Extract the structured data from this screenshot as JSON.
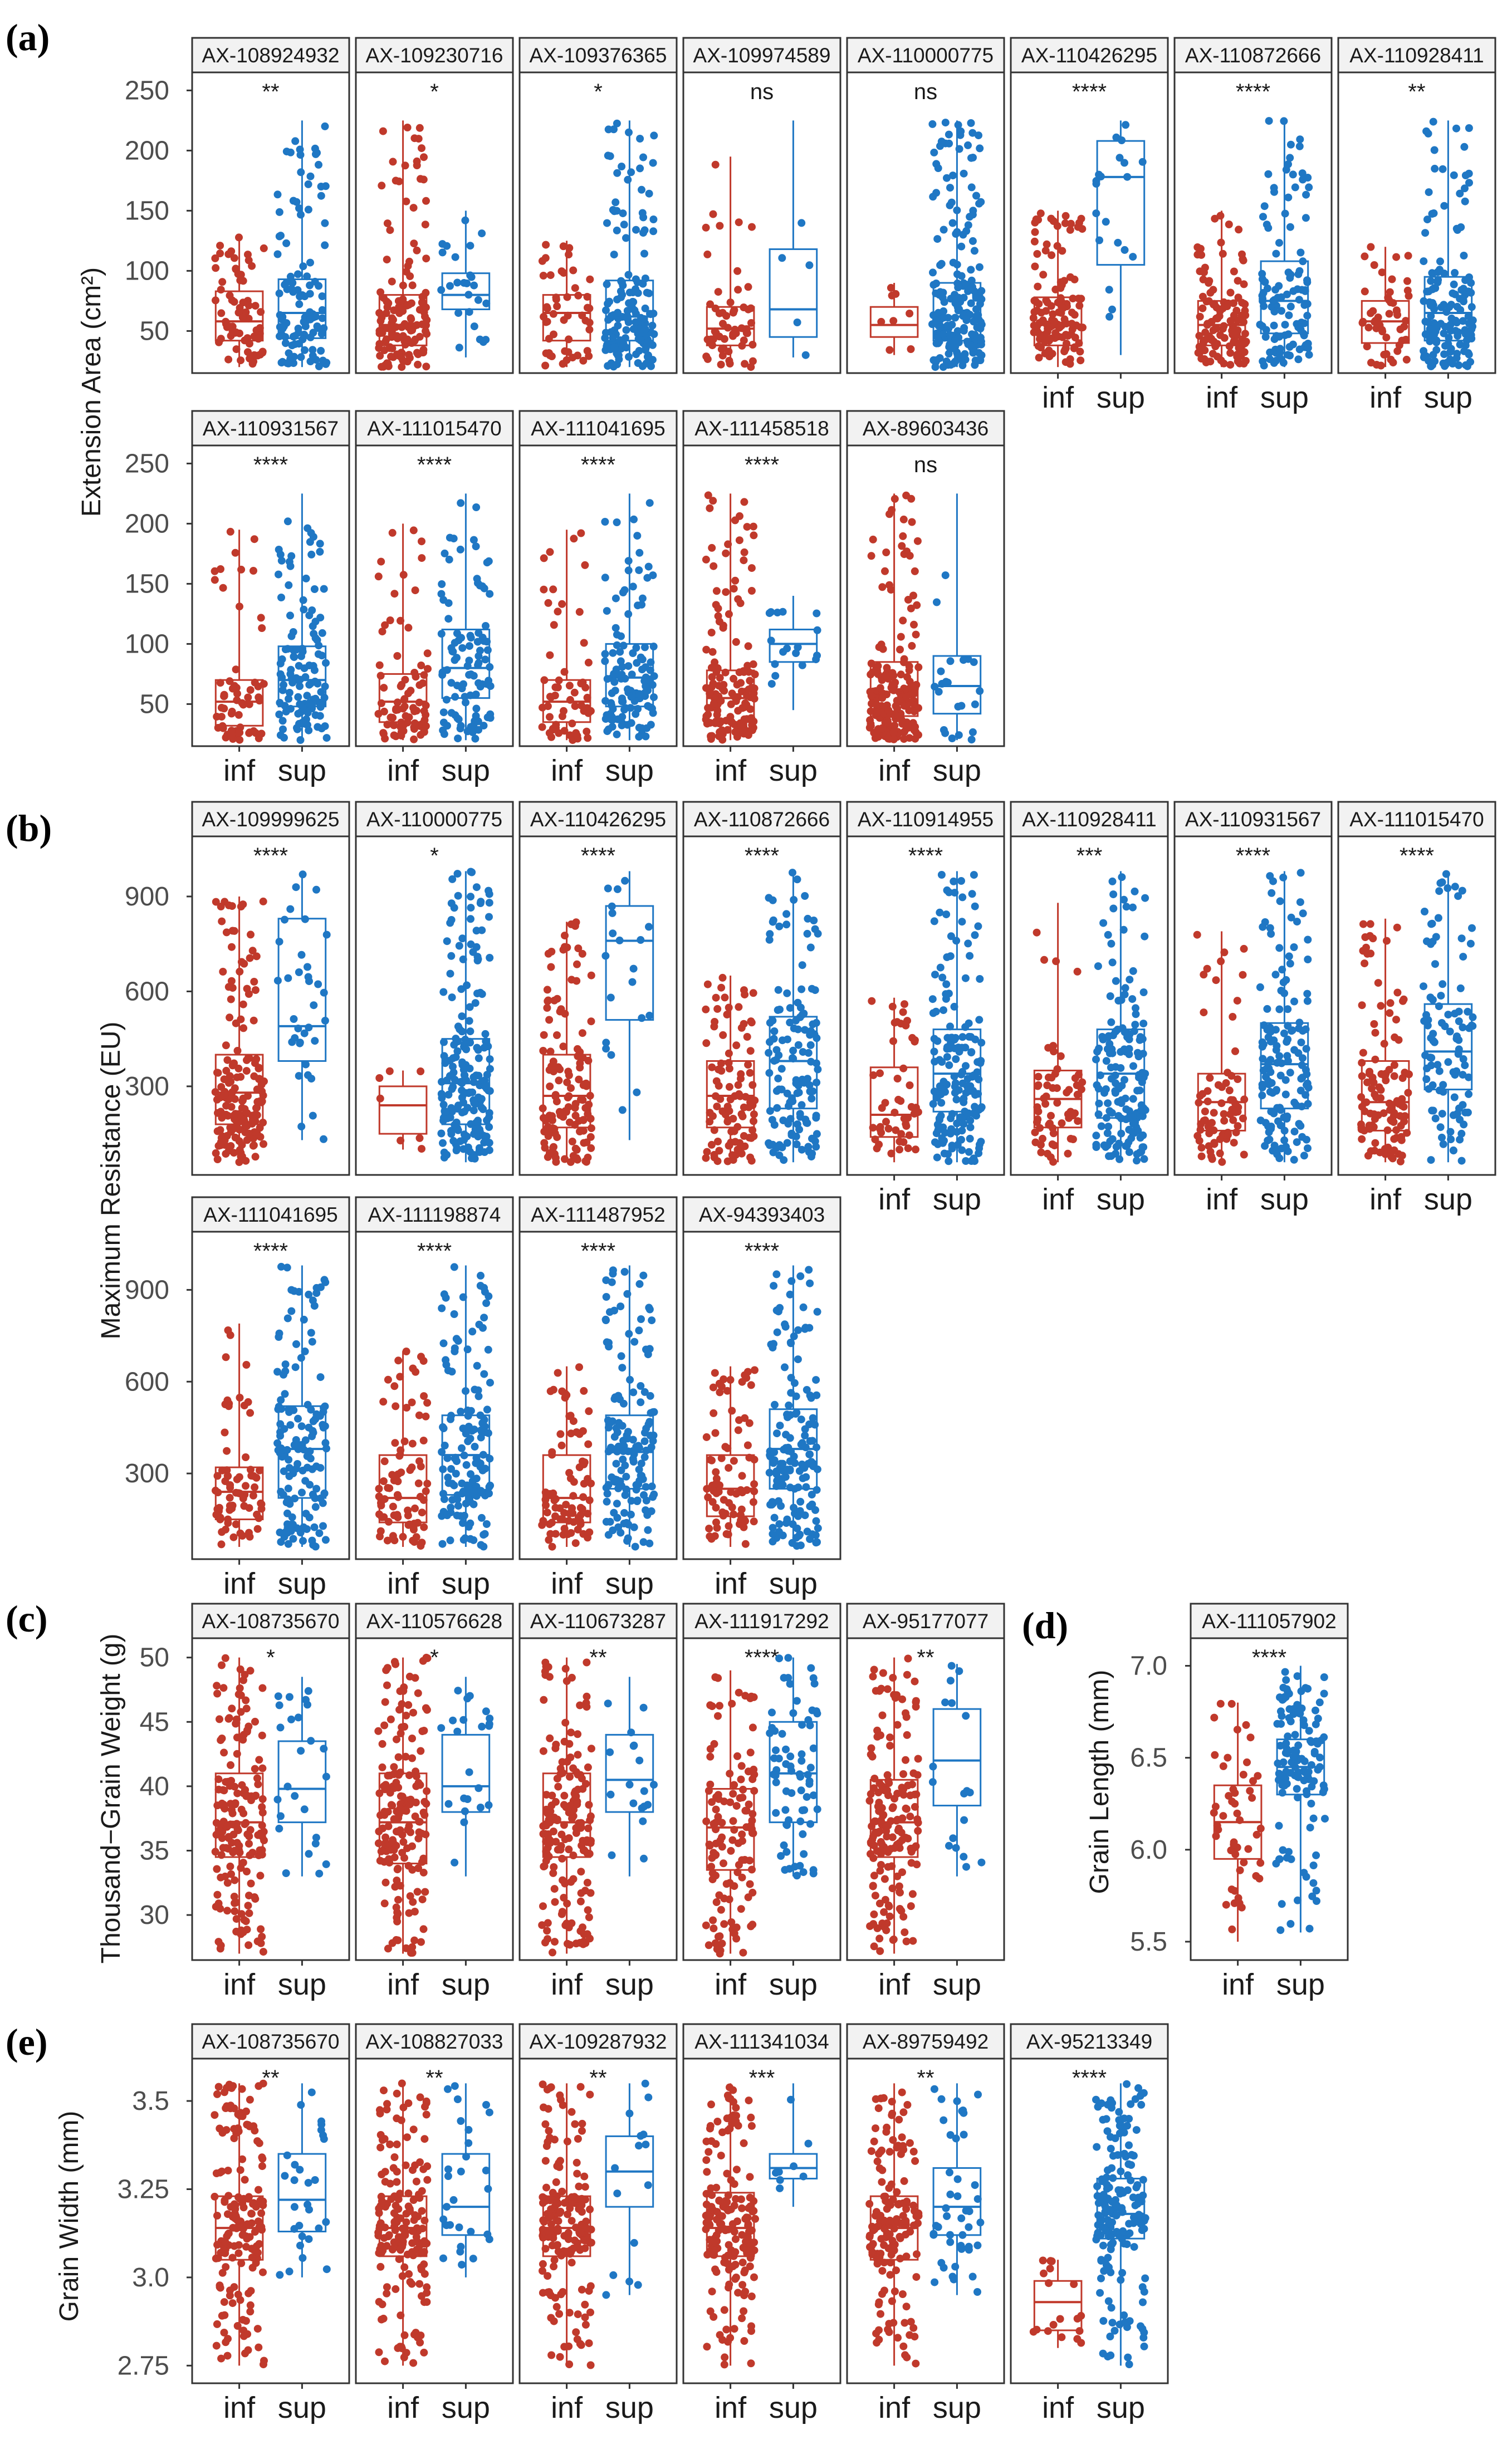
{
  "colors": {
    "inf": "#C0392B",
    "sup": "#1F77C4",
    "panel_border": "#333333",
    "strip_fill": "#f2f2f2"
  },
  "chart_data": [
    {
      "panel": "(a)",
      "type": "boxplot-jitter",
      "ylabel": "Extension Area (cm²)",
      "yticks": [
        50,
        100,
        150,
        200,
        250
      ],
      "ylim": [
        15,
        265
      ],
      "categories": [
        "inf",
        "sup"
      ],
      "cols": 8,
      "facets": [
        {
          "marker": "AX-108924932",
          "sig": "**",
          "inf": {
            "q1": 42,
            "med": 58,
            "q3": 83,
            "lo": 20,
            "hi": 128,
            "n": 70
          },
          "sup": {
            "q1": 44,
            "med": 65,
            "q3": 93,
            "lo": 20,
            "hi": 225,
            "n": 110
          }
        },
        {
          "marker": "AX-109230716",
          "sig": "*",
          "inf": {
            "q1": 38,
            "med": 55,
            "q3": 80,
            "lo": 20,
            "hi": 225,
            "n": 140
          },
          "sup": {
            "q1": 68,
            "med": 80,
            "q3": 98,
            "lo": 28,
            "hi": 150,
            "n": 25
          }
        },
        {
          "marker": "AX-109376365",
          "sig": "*",
          "inf": {
            "q1": 42,
            "med": 65,
            "q3": 80,
            "lo": 20,
            "hi": 125,
            "n": 50
          },
          "sup": {
            "q1": 42,
            "med": 62,
            "q3": 92,
            "lo": 20,
            "hi": 225,
            "n": 150
          }
        },
        {
          "marker": "AX-109974589",
          "sig": "ns",
          "inf": {
            "q1": 38,
            "med": 52,
            "q3": 70,
            "lo": 20,
            "hi": 195,
            "n": 60
          },
          "sup": {
            "q1": 45,
            "med": 68,
            "q3": 118,
            "lo": 28,
            "hi": 225,
            "n": 5
          }
        },
        {
          "marker": "AX-110000775",
          "sig": "ns",
          "inf": {
            "q1": 45,
            "med": 55,
            "q3": 70,
            "lo": 30,
            "hi": 90,
            "n": 8
          },
          "sup": {
            "q1": 42,
            "med": 62,
            "q3": 90,
            "lo": 20,
            "hi": 225,
            "n": 200
          }
        },
        {
          "marker": "AX-110426295",
          "sig": "****",
          "inf": {
            "q1": 38,
            "med": 55,
            "q3": 78,
            "lo": 20,
            "hi": 150,
            "n": 120
          },
          "sup": {
            "q1": 105,
            "med": 178,
            "q3": 208,
            "lo": 30,
            "hi": 225,
            "n": 20
          }
        },
        {
          "marker": "AX-110872666",
          "sig": "****",
          "inf": {
            "q1": 38,
            "med": 55,
            "q3": 75,
            "lo": 20,
            "hi": 150,
            "n": 120
          },
          "sup": {
            "q1": 48,
            "med": 75,
            "q3": 108,
            "lo": 20,
            "hi": 225,
            "n": 110
          }
        },
        {
          "marker": "AX-110928411",
          "sig": "**",
          "inf": {
            "q1": 40,
            "med": 58,
            "q3": 75,
            "lo": 20,
            "hi": 120,
            "n": 50
          },
          "sup": {
            "q1": 42,
            "med": 65,
            "q3": 95,
            "lo": 20,
            "hi": 225,
            "n": 140
          }
        },
        {
          "marker": "AX-110931567",
          "sig": "****",
          "inf": {
            "q1": 32,
            "med": 52,
            "q3": 70,
            "lo": 20,
            "hi": 195,
            "n": 60
          },
          "sup": {
            "q1": 48,
            "med": 70,
            "q3": 98,
            "lo": 20,
            "hi": 225,
            "n": 120
          }
        },
        {
          "marker": "AX-111015470",
          "sig": "****",
          "inf": {
            "q1": 35,
            "med": 52,
            "q3": 75,
            "lo": 20,
            "hi": 200,
            "n": 80
          },
          "sup": {
            "q1": 55,
            "med": 80,
            "q3": 112,
            "lo": 20,
            "hi": 225,
            "n": 100
          }
        },
        {
          "marker": "AX-111041695",
          "sig": "****",
          "inf": {
            "q1": 35,
            "med": 52,
            "q3": 70,
            "lo": 20,
            "hi": 195,
            "n": 60
          },
          "sup": {
            "q1": 48,
            "med": 72,
            "q3": 100,
            "lo": 20,
            "hi": 225,
            "n": 120
          }
        },
        {
          "marker": "AX-111458518",
          "sig": "****",
          "inf": {
            "q1": 35,
            "med": 55,
            "q3": 78,
            "lo": 20,
            "hi": 225,
            "n": 150
          },
          "sup": {
            "q1": 85,
            "med": 100,
            "q3": 112,
            "lo": 45,
            "hi": 140,
            "n": 18
          }
        },
        {
          "marker": "AX-89603436",
          "sig": "ns",
          "inf": {
            "q1": 40,
            "med": 60,
            "q3": 85,
            "lo": 20,
            "hi": 225,
            "n": 180
          },
          "sup": {
            "q1": 42,
            "med": 65,
            "q3": 90,
            "lo": 20,
            "hi": 225,
            "n": 22
          }
        }
      ]
    },
    {
      "panel": "(b)",
      "type": "boxplot-jitter",
      "ylabel": "Maximum Resistance (EU)",
      "yticks": [
        300,
        600,
        900
      ],
      "ylim": [
        20,
        1090
      ],
      "categories": [
        "inf",
        "sup"
      ],
      "cols": 8,
      "facets": [
        {
          "marker": "AX-109999625",
          "sig": "****",
          "inf": {
            "q1": 180,
            "med": 280,
            "q3": 400,
            "lo": 60,
            "hi": 900,
            "n": 170
          },
          "sup": {
            "q1": 380,
            "med": 490,
            "q3": 830,
            "lo": 130,
            "hi": 980,
            "n": 35
          }
        },
        {
          "marker": "AX-110000775",
          "sig": "*",
          "inf": {
            "q1": 150,
            "med": 240,
            "q3": 300,
            "lo": 100,
            "hi": 350,
            "n": 7
          },
          "sup": {
            "q1": 180,
            "med": 310,
            "q3": 450,
            "lo": 60,
            "hi": 980,
            "n": 200
          }
        },
        {
          "marker": "AX-110426295",
          "sig": "****",
          "inf": {
            "q1": 170,
            "med": 270,
            "q3": 400,
            "lo": 60,
            "hi": 820,
            "n": 130
          },
          "sup": {
            "q1": 510,
            "med": 760,
            "q3": 870,
            "lo": 130,
            "hi": 980,
            "n": 20
          }
        },
        {
          "marker": "AX-110872666",
          "sig": "****",
          "inf": {
            "q1": 170,
            "med": 270,
            "q3": 380,
            "lo": 60,
            "hi": 650,
            "n": 100
          },
          "sup": {
            "q1": 230,
            "med": 380,
            "q3": 520,
            "lo": 60,
            "hi": 980,
            "n": 130
          }
        },
        {
          "marker": "AX-110914955",
          "sig": "****",
          "inf": {
            "q1": 140,
            "med": 210,
            "q3": 360,
            "lo": 60,
            "hi": 580,
            "n": 50
          },
          "sup": {
            "q1": 220,
            "med": 340,
            "q3": 480,
            "lo": 60,
            "hi": 980,
            "n": 170
          }
        },
        {
          "marker": "AX-110928411",
          "sig": "***",
          "inf": {
            "q1": 170,
            "med": 260,
            "q3": 350,
            "lo": 60,
            "hi": 880,
            "n": 60
          },
          "sup": {
            "q1": 200,
            "med": 340,
            "q3": 480,
            "lo": 60,
            "hi": 980,
            "n": 160
          }
        },
        {
          "marker": "AX-110931567",
          "sig": "****",
          "inf": {
            "q1": 160,
            "med": 250,
            "q3": 340,
            "lo": 60,
            "hi": 790,
            "n": 70
          },
          "sup": {
            "q1": 230,
            "med": 370,
            "q3": 500,
            "lo": 60,
            "hi": 980,
            "n": 140
          }
        },
        {
          "marker": "AX-111015470",
          "sig": "****",
          "inf": {
            "q1": 160,
            "med": 250,
            "q3": 380,
            "lo": 60,
            "hi": 830,
            "n": 110
          },
          "sup": {
            "q1": 290,
            "med": 410,
            "q3": 560,
            "lo": 60,
            "hi": 980,
            "n": 100
          }
        },
        {
          "marker": "AX-111041695",
          "sig": "****",
          "inf": {
            "q1": 150,
            "med": 240,
            "q3": 320,
            "lo": 60,
            "hi": 790,
            "n": 70
          },
          "sup": {
            "q1": 220,
            "med": 380,
            "q3": 520,
            "lo": 60,
            "hi": 980,
            "n": 140
          }
        },
        {
          "marker": "AX-111198874",
          "sig": "****",
          "inf": {
            "q1": 140,
            "med": 220,
            "q3": 360,
            "lo": 60,
            "hi": 700,
            "n": 80
          },
          "sup": {
            "q1": 230,
            "med": 360,
            "q3": 490,
            "lo": 60,
            "hi": 980,
            "n": 140
          }
        },
        {
          "marker": "AX-111487952",
          "sig": "****",
          "inf": {
            "q1": 140,
            "med": 220,
            "q3": 360,
            "lo": 60,
            "hi": 650,
            "n": 80
          },
          "sup": {
            "q1": 250,
            "med": 370,
            "q3": 490,
            "lo": 60,
            "hi": 980,
            "n": 150
          }
        },
        {
          "marker": "AX-94393403",
          "sig": "****",
          "inf": {
            "q1": 160,
            "med": 250,
            "q3": 360,
            "lo": 60,
            "hi": 650,
            "n": 80
          },
          "sup": {
            "q1": 250,
            "med": 380,
            "q3": 510,
            "lo": 60,
            "hi": 980,
            "n": 150
          }
        }
      ]
    },
    {
      "panel": "(c)",
      "type": "boxplot-jitter",
      "ylabel": "Thousand−Grain Weight (g)",
      "yticks": [
        30,
        35,
        40,
        45,
        50
      ],
      "ylim": [
        26.5,
        51.5
      ],
      "categories": [
        "inf",
        "sup"
      ],
      "cols": 5,
      "facets": [
        {
          "marker": "AX-108735670",
          "sig": "*",
          "inf": {
            "q1": 34.5,
            "med": 37.2,
            "q3": 41,
            "lo": 27,
            "hi": 50,
            "n": 170
          },
          "sup": {
            "q1": 37.2,
            "med": 39.8,
            "q3": 43.5,
            "lo": 33,
            "hi": 48.5,
            "n": 25
          }
        },
        {
          "marker": "AX-110576628",
          "sig": "*",
          "inf": {
            "q1": 34,
            "med": 37.2,
            "q3": 41,
            "lo": 27,
            "hi": 50,
            "n": 170
          },
          "sup": {
            "q1": 38,
            "med": 40,
            "q3": 44,
            "lo": 33,
            "hi": 48.5,
            "n": 22
          }
        },
        {
          "marker": "AX-110673287",
          "sig": "**",
          "inf": {
            "q1": 34.5,
            "med": 37.2,
            "q3": 41,
            "lo": 27,
            "hi": 50,
            "n": 170
          },
          "sup": {
            "q1": 38,
            "med": 40.5,
            "q3": 44,
            "lo": 33,
            "hi": 48.5,
            "n": 18
          }
        },
        {
          "marker": "AX-111917292",
          "sig": "****",
          "inf": {
            "q1": 33.5,
            "med": 36.8,
            "q3": 39.8,
            "lo": 27,
            "hi": 49,
            "n": 120
          },
          "sup": {
            "q1": 37.2,
            "med": 41,
            "q3": 45,
            "lo": 33,
            "hi": 50,
            "n": 70
          }
        },
        {
          "marker": "AX-95177077",
          "sig": "**",
          "inf": {
            "q1": 34.5,
            "med": 37.2,
            "q3": 40.5,
            "lo": 27,
            "hi": 50,
            "n": 170
          },
          "sup": {
            "q1": 38.5,
            "med": 42,
            "q3": 46,
            "lo": 33,
            "hi": 49.5,
            "n": 18
          }
        }
      ]
    },
    {
      "panel": "(d)",
      "type": "boxplot-jitter",
      "ylabel": "Grain Length (mm)",
      "yticks": [
        5.5,
        6.0,
        6.5,
        7.0
      ],
      "ylim": [
        5.4,
        7.15
      ],
      "categories": [
        "inf",
        "sup"
      ],
      "cols": 1,
      "facets": [
        {
          "marker": "AX-111057902",
          "sig": "****",
          "inf": {
            "q1": 5.95,
            "med": 6.15,
            "q3": 6.35,
            "lo": 5.5,
            "hi": 6.8,
            "n": 50
          },
          "sup": {
            "q1": 6.3,
            "med": 6.45,
            "q3": 6.6,
            "lo": 5.55,
            "hi": 7.0,
            "n": 130
          }
        }
      ]
    },
    {
      "panel": "(e)",
      "type": "boxplot-jitter",
      "ylabel": "Grain Width (mm)",
      "yticks": [
        2.75,
        3.0,
        3.25,
        3.5
      ],
      "ylim": [
        2.7,
        3.62
      ],
      "categories": [
        "inf",
        "sup"
      ],
      "cols": 6,
      "facets": [
        {
          "marker": "AX-108735670",
          "sig": "**",
          "inf": {
            "q1": 3.05,
            "med": 3.14,
            "q3": 3.23,
            "lo": 2.75,
            "hi": 3.55,
            "n": 170
          },
          "sup": {
            "q1": 3.13,
            "med": 3.22,
            "q3": 3.35,
            "lo": 3.0,
            "hi": 3.55,
            "n": 28
          }
        },
        {
          "marker": "AX-108827033",
          "sig": "**",
          "inf": {
            "q1": 3.06,
            "med": 3.14,
            "q3": 3.23,
            "lo": 2.75,
            "hi": 3.55,
            "n": 170
          },
          "sup": {
            "q1": 3.12,
            "med": 3.2,
            "q3": 3.35,
            "lo": 3.0,
            "hi": 3.55,
            "n": 28
          }
        },
        {
          "marker": "AX-109287932",
          "sig": "**",
          "inf": {
            "q1": 3.06,
            "med": 3.14,
            "q3": 3.23,
            "lo": 2.75,
            "hi": 3.55,
            "n": 170
          },
          "sup": {
            "q1": 3.2,
            "med": 3.3,
            "q3": 3.4,
            "lo": 2.95,
            "hi": 3.55,
            "n": 15
          }
        },
        {
          "marker": "AX-111341034",
          "sig": "***",
          "inf": {
            "q1": 3.06,
            "med": 3.14,
            "q3": 3.24,
            "lo": 2.75,
            "hi": 3.55,
            "n": 170
          },
          "sup": {
            "q1": 3.28,
            "med": 3.31,
            "q3": 3.35,
            "lo": 3.2,
            "hi": 3.55,
            "n": 8
          }
        },
        {
          "marker": "AX-89759492",
          "sig": "**",
          "inf": {
            "q1": 3.05,
            "med": 3.14,
            "q3": 3.23,
            "lo": 2.75,
            "hi": 3.55,
            "n": 150
          },
          "sup": {
            "q1": 3.12,
            "med": 3.2,
            "q3": 3.31,
            "lo": 2.95,
            "hi": 3.55,
            "n": 45
          }
        },
        {
          "marker": "AX-95213349",
          "sig": "****",
          "inf": {
            "q1": 2.85,
            "med": 2.93,
            "q3": 2.99,
            "lo": 2.8,
            "hi": 3.05,
            "n": 18
          },
          "sup": {
            "q1": 3.11,
            "med": 3.18,
            "q3": 3.28,
            "lo": 2.75,
            "hi": 3.55,
            "n": 180
          }
        }
      ]
    }
  ]
}
